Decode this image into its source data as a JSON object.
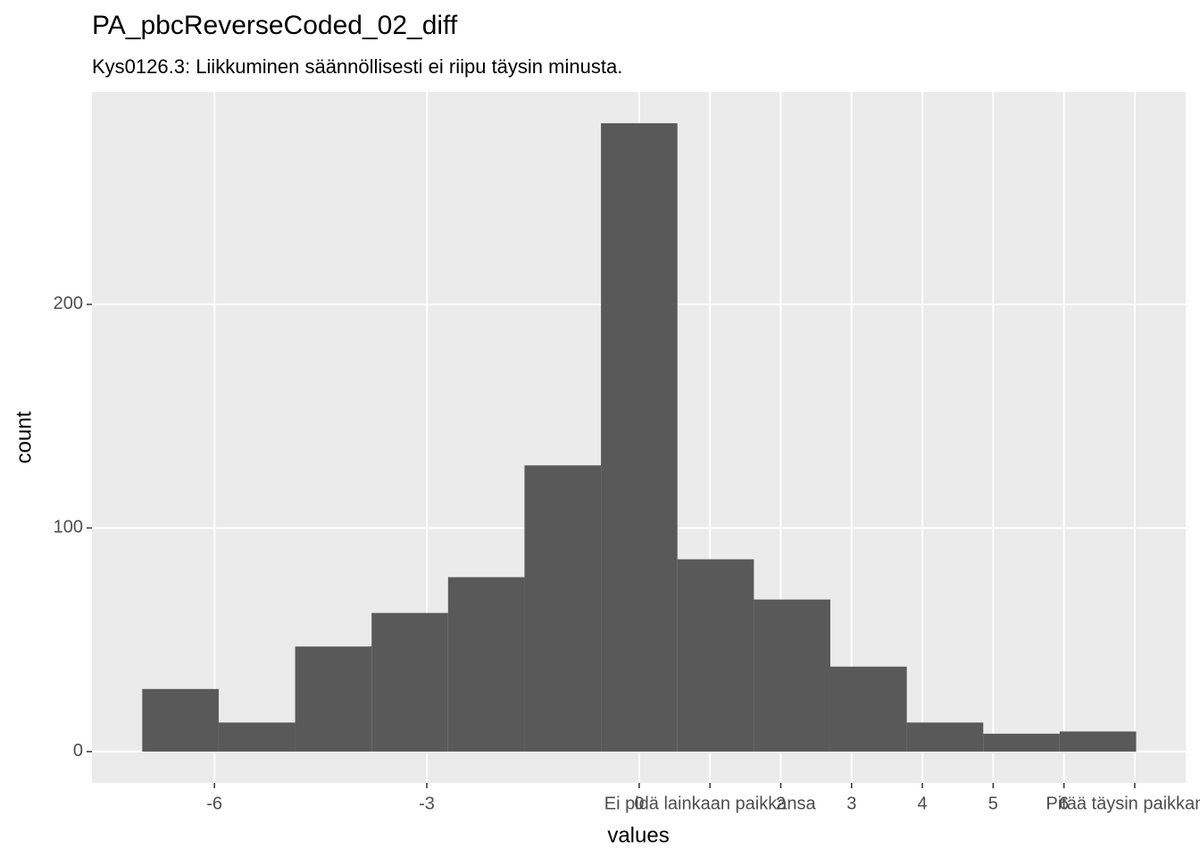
{
  "chart_data": {
    "type": "histogram",
    "title": "PA_pbcReverseCoded_02_diff",
    "subtitle": "Kys0126.3: Liikkuminen säännöllisesti ei riipu täysin minusta.",
    "x_label": "values",
    "y_label": "count",
    "bins": [
      -7.02,
      -5.94,
      -4.86,
      -3.78,
      -2.7,
      -1.62,
      -0.54,
      0.54,
      1.62,
      2.7,
      3.78,
      4.86,
      5.94,
      7.02
    ],
    "values": [
      28,
      13,
      47,
      62,
      78,
      128,
      281,
      86,
      68,
      38,
      13,
      8,
      9
    ],
    "color": "#595959",
    "xlim": [
      -7.73,
      7.72
    ],
    "ylim": [
      -14,
      295
    ],
    "xticks": [
      -6,
      -3,
      0,
      {
        "value": 1,
        "label": "Ei pidä lainkaan paikkansa"
      },
      2,
      3,
      4,
      5,
      6,
      {
        "value": 7,
        "label": "Pitää täysin paikkansa"
      }
    ],
    "yticks": [
      0,
      100,
      200
    ],
    "grid": true
  }
}
